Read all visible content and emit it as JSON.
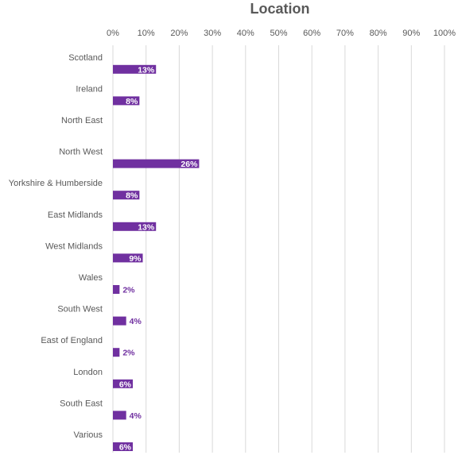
{
  "chart_data": {
    "type": "bar",
    "orientation": "horizontal",
    "title": "Location",
    "categories": [
      "Scotland",
      "Ireland",
      "North East",
      "North West",
      "Yorkshire & Humberside",
      "East Midlands",
      "West Midlands",
      "Wales",
      "South West",
      "East of England",
      "London",
      "South East",
      "Various"
    ],
    "values": [
      13,
      8,
      0,
      26,
      8,
      13,
      9,
      2,
      4,
      2,
      6,
      4,
      6
    ],
    "data_labels": [
      "13%",
      "8%",
      "",
      "26%",
      "8%",
      "13%",
      "9%",
      "2%",
      "4%",
      "2%",
      "6%",
      "4%",
      "6%"
    ],
    "x_ticks": [
      "0%",
      "10%",
      "20%",
      "30%",
      "40%",
      "50%",
      "60%",
      "70%",
      "80%",
      "90%",
      "100%"
    ],
    "xlim": [
      0,
      100
    ],
    "x_axis_position": "top",
    "grid": true,
    "bar_color": "#7030a0"
  }
}
